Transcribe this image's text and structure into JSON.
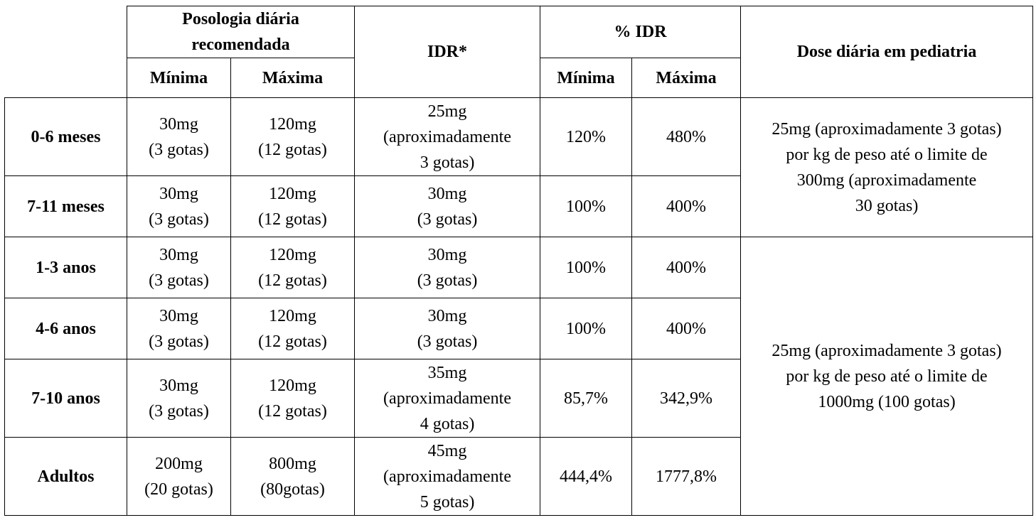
{
  "headers": {
    "posologia": "Posologia diária\nrecomendada",
    "idr": "IDR*",
    "pct_idr": "% IDR",
    "dose_pediatria": "Dose diária em pediatria",
    "minima": "Mínima",
    "maxima": "Máxima"
  },
  "rows": [
    {
      "age": "0-6 meses",
      "min": "30mg\n(3 gotas)",
      "max": "120mg\n(12 gotas)",
      "idr": "25mg\n(aproximadamente\n3 gotas)",
      "pct_min": "120%",
      "pct_max": "480%"
    },
    {
      "age": "7-11 meses",
      "min": "30mg\n(3 gotas)",
      "max": "120mg\n(12 gotas)",
      "idr": "30mg\n(3 gotas)",
      "pct_min": "100%",
      "pct_max": "400%"
    },
    {
      "age": "1-3 anos",
      "min": "30mg\n(3 gotas)",
      "max": "120mg\n(12 gotas)",
      "idr": "30mg\n(3 gotas)",
      "pct_min": "100%",
      "pct_max": "400%"
    },
    {
      "age": "4-6 anos",
      "min": "30mg\n(3 gotas)",
      "max": "120mg\n(12 gotas)",
      "idr": "30mg\n(3 gotas)",
      "pct_min": "100%",
      "pct_max": "400%"
    },
    {
      "age": "7-10 anos",
      "min": "30mg\n(3 gotas)",
      "max": "120mg\n(12 gotas)",
      "idr": "35mg\n(aproximadamente\n4 gotas)",
      "pct_min": "85,7%",
      "pct_max": "342,9%"
    },
    {
      "age": "Adultos",
      "min": "200mg\n(20 gotas)",
      "max": "800mg\n(80gotas)",
      "idr": "45mg\n(aproximadamente\n5 gotas)",
      "pct_min": "444,4%",
      "pct_max": "1777,8%"
    }
  ],
  "pediatria": {
    "group1": "25mg (aproximadamente 3 gotas)\npor kg de peso até o limite de\n300mg (aproximadamente\n30 gotas)",
    "group2": "25mg (aproximadamente 3 gotas)\npor kg de peso até o limite de\n1000mg (100  gotas)"
  }
}
